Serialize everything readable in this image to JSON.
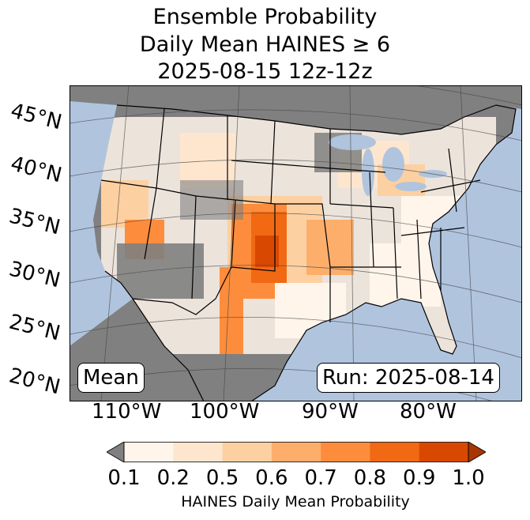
{
  "title": {
    "line1": "Ensemble Probability",
    "line2": "Daily Mean HAINES ≥ 6",
    "line3": "2025-08-15 12z-12z"
  },
  "map": {
    "latitude_labels": [
      "45°N",
      "40°N",
      "35°N",
      "30°N",
      "25°N",
      "20°N"
    ],
    "longitude_labels": [
      "110°W",
      "100°W",
      "90°W",
      "80°W"
    ],
    "ocean_color": "#b0c4de",
    "land_color": "#808080",
    "border_color": "#000000"
  },
  "annotations": {
    "left": "Mean",
    "right": "Run: 2025-08-14"
  },
  "colorbar": {
    "ticks": [
      "0.1",
      "0.2",
      "0.5",
      "0.6",
      "0.7",
      "0.8",
      "0.9",
      "1.0"
    ],
    "colors": [
      "#fff5eb",
      "#fee6ce",
      "#fdd0a2",
      "#fdae6b",
      "#fd8d3c",
      "#f16913",
      "#d94801",
      "#a63603"
    ],
    "under_color": "#808080",
    "label": "HAINES Daily Mean Probability"
  }
}
